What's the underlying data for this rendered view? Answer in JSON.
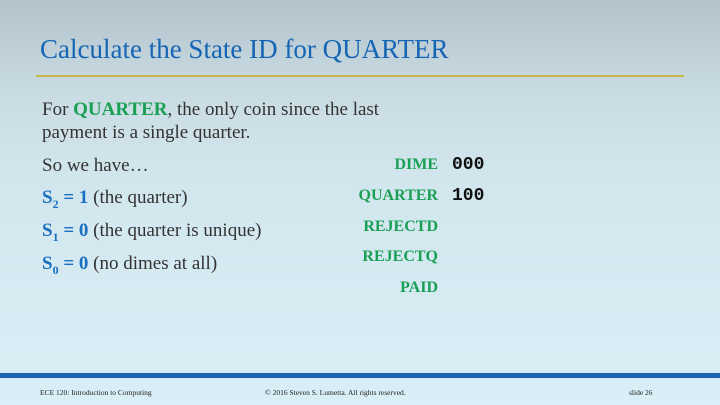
{
  "slide": {
    "title": "Calculate the State ID for QUARTER",
    "paragraph": {
      "prefix": "For ",
      "keyword": "QUARTER",
      "line1_rest": ", the only coin since the last",
      "line2": "payment is a single quarter."
    },
    "so_we_have": "So we have…",
    "bits": [
      {
        "var": "S",
        "sub": "2",
        "value": " = 1",
        "note": " (the quarter)"
      },
      {
        "var": "S",
        "sub": "1",
        "value": " = 0",
        "note": " (the quarter is unique)"
      },
      {
        "var": "S",
        "sub": "0",
        "value": " = 0",
        "note": " (no dimes at all)"
      }
    ],
    "states": [
      {
        "name": "DIME",
        "code": "000"
      },
      {
        "name": "QUARTER",
        "code": "100"
      },
      {
        "name": "REJECTD",
        "code": ""
      },
      {
        "name": "REJECTQ",
        "code": ""
      },
      {
        "name": "PAID",
        "code": ""
      }
    ]
  },
  "footer": {
    "course": "ECE 120: Introduction to Computing",
    "copyright": "© 2016 Steven S. Lumetta.  All rights reserved.",
    "slide_number": "slide 26"
  },
  "colors": {
    "title": "#1565b5",
    "keyword": "#1aa055",
    "equation": "#1a6fc0",
    "rule": "#c8b84a",
    "footer_bar": "#1f66b0"
  }
}
